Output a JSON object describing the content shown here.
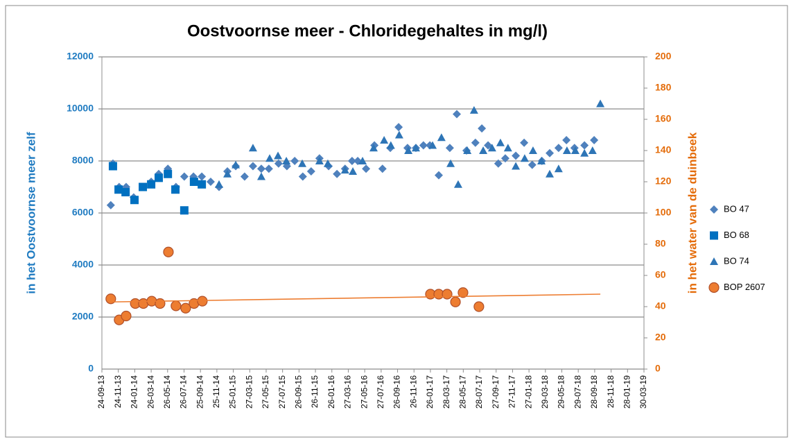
{
  "chart_data": {
    "type": "scatter",
    "title": "Oostvoornse  meer -  Chloridegehaltes in mg/l)",
    "ylabel": "in het Oostvoornse meer zelf",
    "y2label": "in het water van de duinbeek",
    "xlim": [
      41541,
      43554
    ],
    "xticks": [
      {
        "value": 41541,
        "label": "24-09-13"
      },
      {
        "value": 41602,
        "label": "24-11-13"
      },
      {
        "value": 41663,
        "label": "24-01-14"
      },
      {
        "value": 41724,
        "label": "26-03-14"
      },
      {
        "value": 41785,
        "label": "26-05-14"
      },
      {
        "value": 41846,
        "label": "26-07-14"
      },
      {
        "value": 41907,
        "label": "25-09-14"
      },
      {
        "value": 41968,
        "label": "25-11-14"
      },
      {
        "value": 42029,
        "label": "25-01-15"
      },
      {
        "value": 42090,
        "label": "27-03-15"
      },
      {
        "value": 42151,
        "label": "27-05-15"
      },
      {
        "value": 42212,
        "label": "27-07-15"
      },
      {
        "value": 42273,
        "label": "26-09-15"
      },
      {
        "value": 42334,
        "label": "26-11-15"
      },
      {
        "value": 42395,
        "label": "26-01-16"
      },
      {
        "value": 42456,
        "label": "27-03-16"
      },
      {
        "value": 42517,
        "label": "27-05-16"
      },
      {
        "value": 42578,
        "label": "27-07-16"
      },
      {
        "value": 42639,
        "label": "26-09-16"
      },
      {
        "value": 42700,
        "label": "26-11-16"
      },
      {
        "value": 42761,
        "label": "26-01-17"
      },
      {
        "value": 42822,
        "label": "28-03-17"
      },
      {
        "value": 42883,
        "label": "28-05-17"
      },
      {
        "value": 42944,
        "label": "28-07-17"
      },
      {
        "value": 43005,
        "label": "27-09-17"
      },
      {
        "value": 43066,
        "label": "27-11-17"
      },
      {
        "value": 43127,
        "label": "27-01-18"
      },
      {
        "value": 43188,
        "label": "29-03-18"
      },
      {
        "value": 43249,
        "label": "29-05-18"
      },
      {
        "value": 43310,
        "label": "29-07-18"
      },
      {
        "value": 43371,
        "label": "28-09-18"
      },
      {
        "value": 43432,
        "label": "28-11-18"
      },
      {
        "value": 43493,
        "label": "28-01-19"
      },
      {
        "value": 43554,
        "label": "30-03-19"
      }
    ],
    "ylim": [
      0,
      12000
    ],
    "yticks": [
      0,
      2000,
      4000,
      6000,
      8000,
      10000,
      12000
    ],
    "y2lim": [
      0,
      200
    ],
    "y2ticks": [
      0,
      20,
      40,
      60,
      80,
      100,
      120,
      140,
      160,
      180,
      200
    ],
    "grid": true,
    "legend": "right",
    "series": [
      {
        "name": "BO 47",
        "color": "#4f81bd",
        "marker": "diamond",
        "x": [
          41574,
          41582,
          41605,
          41631,
          41659,
          41693,
          41724,
          41752,
          41786,
          41816,
          41847,
          41881,
          41912,
          41945,
          41976,
          42007,
          42038,
          42071,
          42102,
          42133,
          42161,
          42197,
          42228,
          42257,
          42287,
          42318,
          42349,
          42383,
          42414,
          42444,
          42470,
          42491,
          42522,
          42553,
          42583,
          42612,
          42643,
          42676,
          42707,
          42735,
          42759,
          42792,
          42833,
          42859,
          42895,
          42928,
          42952,
          42975,
          43013,
          43039,
          43078,
          43109,
          43139,
          43175,
          43204,
          43237,
          43266,
          43296,
          43333,
          43369
        ],
        "values": [
          6300,
          7900,
          7000,
          7000,
          6600,
          7000,
          7200,
          7500,
          7700,
          7000,
          7400,
          7400,
          7400,
          7200,
          7000,
          7600,
          7800,
          7400,
          7800,
          7700,
          7700,
          7900,
          7800,
          8000,
          7400,
          7600,
          8100,
          7800,
          7500,
          7700,
          8000,
          8000,
          7700,
          8600,
          7700,
          8500,
          9300,
          8500,
          8500,
          8600,
          8600,
          7450,
          8500,
          9800,
          8400,
          8700,
          9250,
          8600,
          7900,
          8100,
          8200,
          8700,
          7850,
          8000,
          8300,
          8500,
          8800,
          8500,
          8600,
          8800
        ]
      },
      {
        "name": "BO 68",
        "color": "#0070c0",
        "marker": "square",
        "x": [
          41582,
          41603,
          41629,
          41662,
          41693,
          41724,
          41752,
          41786,
          41814,
          41847,
          41883,
          41912
        ],
        "values": [
          7800,
          6900,
          6800,
          6500,
          7000,
          7100,
          7350,
          7500,
          6900,
          6100,
          7200,
          7100
        ]
      },
      {
        "name": "BO 74",
        "color": "#2e75b6",
        "marker": "triangle",
        "x": [
          41976,
          42007,
          42038,
          42102,
          42133,
          42164,
          42195,
          42226,
          42285,
          42349,
          42380,
          42444,
          42473,
          42509,
          42550,
          42589,
          42614,
          42645,
          42679,
          42707,
          42769,
          42802,
          42836,
          42864,
          42898,
          42923,
          42957,
          42990,
          43021,
          43049,
          43078,
          43111,
          43142,
          43173,
          43204,
          43237,
          43268,
          43299,
          43333,
          43363,
          43392
        ],
        "values": [
          7100,
          7500,
          7850,
          8500,
          7400,
          8100,
          8200,
          8000,
          7900,
          8000,
          7900,
          7650,
          7600,
          8000,
          8500,
          8800,
          8600,
          9000,
          8400,
          8500,
          8600,
          8900,
          7900,
          7100,
          8400,
          9950,
          8400,
          8500,
          8700,
          8500,
          7800,
          8100,
          8400,
          8000,
          7500,
          7700,
          8400,
          8400,
          8300,
          8400,
          10200
        ]
      },
      {
        "name": "BOP 2607",
        "color": "#ed7d31",
        "marker": "circle",
        "axis": "y2",
        "x": [
          41574,
          41605,
          41631,
          41665,
          41695,
          41726,
          41757,
          41788,
          41816,
          41852,
          41883,
          41914,
          42761,
          42792,
          42823,
          42854,
          42882,
          42941
        ],
        "values": [
          45,
          31.5,
          34,
          42,
          42,
          43.5,
          42,
          75,
          40.5,
          39,
          42,
          43.5,
          48,
          48,
          48,
          43,
          49,
          40
        ]
      }
    ],
    "trendline": {
      "color": "#ed7d31",
      "axis": "y2",
      "x": [
        41574,
        43392
      ],
      "values": [
        43,
        48
      ]
    }
  }
}
